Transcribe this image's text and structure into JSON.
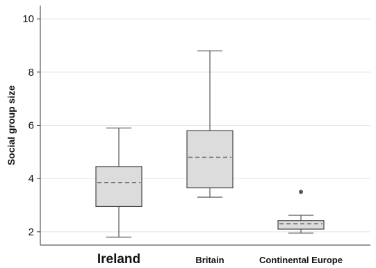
{
  "chart_data": {
    "type": "box",
    "ylabel": "Social group size",
    "ylim": [
      1.5,
      10.5
    ],
    "yticks": [
      2,
      4,
      6,
      8,
      10
    ],
    "grid": "horizontal",
    "categories": [
      "Ireland",
      "Britain",
      "Continental Europe"
    ],
    "boxes": [
      {
        "category": "Ireland",
        "whisker_low": 1.8,
        "q1": 2.95,
        "median": 3.85,
        "q3": 4.45,
        "whisker_high": 5.9,
        "outliers": []
      },
      {
        "category": "Britain",
        "whisker_low": 3.3,
        "q1": 3.65,
        "median": 4.8,
        "q3": 5.8,
        "whisker_high": 8.8,
        "outliers": []
      },
      {
        "category": "Continental Europe",
        "whisker_low": 1.95,
        "q1": 2.1,
        "median": 2.3,
        "q3": 2.42,
        "whisker_high": 2.62,
        "outliers": [
          3.5
        ]
      }
    ],
    "colors": {
      "box_fill": "#dcdcdc",
      "box_stroke": "#444444",
      "median": "#666666",
      "outlier": "#555555"
    }
  }
}
